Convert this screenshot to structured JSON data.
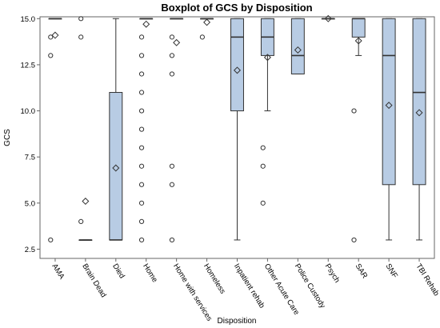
{
  "chart_data": {
    "type": "boxplot",
    "title": "Boxplot of GCS by Disposition",
    "xlabel": "Disposition",
    "ylabel": "GCS",
    "ylim": [
      2,
      15.1
    ],
    "yticks": [
      "2.5",
      "5.0",
      "7.5",
      "10.0",
      "12.5",
      "15.0"
    ],
    "grid": false,
    "colors": {
      "box_fill": "#b8cce4",
      "box_stroke": "#333333",
      "marker": "#333333"
    },
    "categories": [
      "AMA",
      "Brain Dead",
      "Died",
      "Home",
      "Home with services",
      "Homeless",
      "Inpatient rehab",
      "Other Acute Care",
      "Police Custody",
      "Psych",
      "SAR",
      "SNF",
      "TBI Rehab"
    ],
    "boxes": [
      {
        "category": "AMA",
        "q1": 15,
        "median": 15,
        "q3": 15,
        "whisker_low": 15,
        "whisker_high": 15,
        "mean": 14.1,
        "outliers": [
          14,
          13,
          3
        ]
      },
      {
        "category": "Brain Dead",
        "q1": 3,
        "median": 3,
        "q3": 3,
        "whisker_low": 3,
        "whisker_high": 3,
        "mean": 5.1,
        "outliers": [
          15,
          14,
          4
        ]
      },
      {
        "category": "Died",
        "q1": 3,
        "median": 3,
        "q3": 11,
        "whisker_low": 3,
        "whisker_high": 15,
        "mean": 6.9,
        "outliers": []
      },
      {
        "category": "Home",
        "q1": 15,
        "median": 15,
        "q3": 15,
        "whisker_low": 15,
        "whisker_high": 15,
        "mean": 14.7,
        "outliers": [
          14,
          13,
          12,
          11,
          10,
          9,
          8,
          7,
          6,
          5,
          4,
          3
        ]
      },
      {
        "category": "Home with services",
        "q1": 15,
        "median": 15,
        "q3": 15,
        "whisker_low": 15,
        "whisker_high": 15,
        "mean": 13.7,
        "outliers": [
          14,
          13,
          12,
          7,
          6,
          3
        ]
      },
      {
        "category": "Homeless",
        "q1": 15,
        "median": 15,
        "q3": 15,
        "whisker_low": 15,
        "whisker_high": 15,
        "mean": 14.8,
        "outliers": [
          14
        ]
      },
      {
        "category": "Inpatient rehab",
        "q1": 10,
        "median": 14,
        "q3": 15,
        "whisker_low": 3,
        "whisker_high": 15,
        "mean": 12.2,
        "outliers": []
      },
      {
        "category": "Other Acute Care",
        "q1": 13,
        "median": 14,
        "q3": 15,
        "whisker_low": 10,
        "whisker_high": 15,
        "mean": 12.9,
        "outliers": [
          8,
          7,
          5
        ]
      },
      {
        "category": "Police Custody",
        "q1": 12,
        "median": 13,
        "q3": 15,
        "whisker_low": 12,
        "whisker_high": 15,
        "mean": 13.3,
        "outliers": []
      },
      {
        "category": "Psych",
        "q1": 15,
        "median": 15,
        "q3": 15,
        "whisker_low": 15,
        "whisker_high": 15,
        "mean": 15,
        "outliers": []
      },
      {
        "category": "SAR",
        "q1": 14,
        "median": 15,
        "q3": 15,
        "whisker_low": 13,
        "whisker_high": 15,
        "mean": 13.8,
        "outliers": [
          10,
          3
        ]
      },
      {
        "category": "SNF",
        "q1": 6,
        "median": 13,
        "q3": 15,
        "whisker_low": 3,
        "whisker_high": 15,
        "mean": 10.3,
        "outliers": []
      },
      {
        "category": "TBI Rehab",
        "q1": 6,
        "median": 11,
        "q3": 15,
        "whisker_low": 3,
        "whisker_high": 15,
        "mean": 9.9,
        "outliers": []
      }
    ]
  }
}
